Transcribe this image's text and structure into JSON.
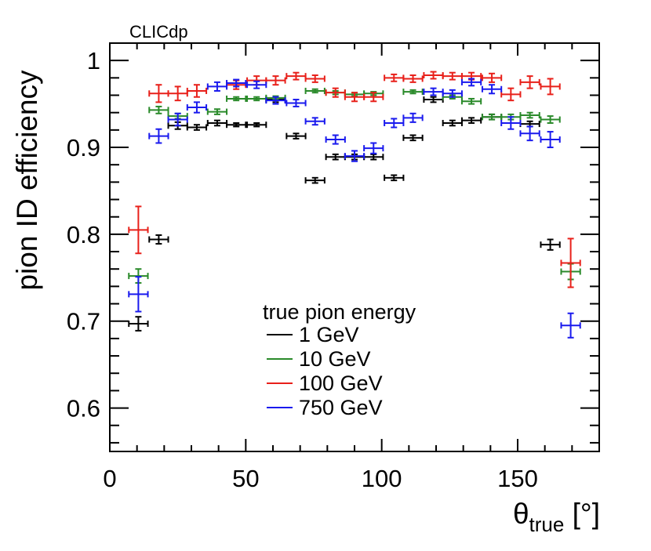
{
  "chart_data": {
    "type": "scatter",
    "label": "CLICdp",
    "xlabel_main": "θ",
    "xlabel_sub": "true",
    "xlabel_unit": " [°]",
    "ylabel": "pion ID efficiency",
    "xlim": [
      0,
      180
    ],
    "ylim": [
      0.55,
      1.02
    ],
    "x_ticks": [
      0,
      50,
      100,
      150
    ],
    "y_ticks": [
      0.6,
      0.7,
      0.8,
      0.9,
      1
    ],
    "y_tick_labels": [
      "0.6",
      "0.7",
      "0.8",
      "0.9",
      "1"
    ],
    "legend_title": "true pion energy",
    "series": [
      {
        "name": "1 GeV",
        "color": "#000000",
        "points": [
          {
            "x": 10.5,
            "y": 0.697,
            "xerr": 3.5,
            "yerr": 0.008
          },
          {
            "x": 18.0,
            "y": 0.794,
            "xerr": 3.5,
            "yerr": 0.005
          },
          {
            "x": 25.0,
            "y": 0.925,
            "xerr": 3.5,
            "yerr": 0.004
          },
          {
            "x": 32.0,
            "y": 0.923,
            "xerr": 3.5,
            "yerr": 0.003
          },
          {
            "x": 39.5,
            "y": 0.928,
            "xerr": 3.5,
            "yerr": 0.003
          },
          {
            "x": 46.5,
            "y": 0.926,
            "xerr": 3.5,
            "yerr": 0.002
          },
          {
            "x": 54.0,
            "y": 0.926,
            "xerr": 3.5,
            "yerr": 0.002
          },
          {
            "x": 61.0,
            "y": 0.955,
            "xerr": 3.5,
            "yerr": 0.003
          },
          {
            "x": 68.5,
            "y": 0.913,
            "xerr": 3.5,
            "yerr": 0.003
          },
          {
            "x": 75.5,
            "y": 0.862,
            "xerr": 3.5,
            "yerr": 0.003
          },
          {
            "x": 83.0,
            "y": 0.889,
            "xerr": 3.5,
            "yerr": 0.003
          },
          {
            "x": 90.0,
            "y": 0.889,
            "xerr": 3.5,
            "yerr": 0.003
          },
          {
            "x": 97.0,
            "y": 0.889,
            "xerr": 3.5,
            "yerr": 0.003
          },
          {
            "x": 104.5,
            "y": 0.865,
            "xerr": 3.5,
            "yerr": 0.003
          },
          {
            "x": 111.5,
            "y": 0.911,
            "xerr": 3.5,
            "yerr": 0.003
          },
          {
            "x": 119.0,
            "y": 0.955,
            "xerr": 3.5,
            "yerr": 0.003
          },
          {
            "x": 126.0,
            "y": 0.928,
            "xerr": 3.5,
            "yerr": 0.003
          },
          {
            "x": 133.0,
            "y": 0.931,
            "xerr": 3.5,
            "yerr": 0.003
          },
          {
            "x": 140.5,
            "y": 0.935,
            "xerr": 3.5,
            "yerr": 0.003
          },
          {
            "x": 154.5,
            "y": 0.927,
            "xerr": 3.5,
            "yerr": 0.003
          },
          {
            "x": 162.0,
            "y": 0.788,
            "xerr": 3.5,
            "yerr": 0.006
          }
        ]
      },
      {
        "name": "10 GeV",
        "color": "#2a8a2a",
        "points": [
          {
            "x": 10.5,
            "y": 0.752,
            "xerr": 3.5,
            "yerr": 0.008
          },
          {
            "x": 18.0,
            "y": 0.943,
            "xerr": 3.5,
            "yerr": 0.004
          },
          {
            "x": 25.0,
            "y": 0.936,
            "xerr": 3.5,
            "yerr": 0.003
          },
          {
            "x": 39.5,
            "y": 0.941,
            "xerr": 3.5,
            "yerr": 0.003
          },
          {
            "x": 46.5,
            "y": 0.956,
            "xerr": 3.5,
            "yerr": 0.002
          },
          {
            "x": 54.0,
            "y": 0.956,
            "xerr": 3.5,
            "yerr": 0.002
          },
          {
            "x": 61.0,
            "y": 0.957,
            "xerr": 3.5,
            "yerr": 0.002
          },
          {
            "x": 75.5,
            "y": 0.965,
            "xerr": 3.5,
            "yerr": 0.002
          },
          {
            "x": 83.0,
            "y": 0.963,
            "xerr": 3.5,
            "yerr": 0.002
          },
          {
            "x": 90.0,
            "y": 0.961,
            "xerr": 3.5,
            "yerr": 0.002
          },
          {
            "x": 97.0,
            "y": 0.962,
            "xerr": 3.5,
            "yerr": 0.002
          },
          {
            "x": 111.5,
            "y": 0.964,
            "xerr": 3.5,
            "yerr": 0.002
          },
          {
            "x": 126.0,
            "y": 0.958,
            "xerr": 3.5,
            "yerr": 0.002
          },
          {
            "x": 133.0,
            "y": 0.953,
            "xerr": 3.5,
            "yerr": 0.003
          },
          {
            "x": 140.5,
            "y": 0.935,
            "xerr": 3.5,
            "yerr": 0.003
          },
          {
            "x": 147.5,
            "y": 0.935,
            "xerr": 3.5,
            "yerr": 0.003
          },
          {
            "x": 154.5,
            "y": 0.937,
            "xerr": 3.5,
            "yerr": 0.003
          },
          {
            "x": 162.0,
            "y": 0.932,
            "xerr": 3.5,
            "yerr": 0.004
          },
          {
            "x": 169.5,
            "y": 0.757,
            "xerr": 3.5,
            "yerr": 0.009
          }
        ]
      },
      {
        "name": "100 GeV",
        "color": "#e8201a",
        "points": [
          {
            "x": 10.5,
            "y": 0.805,
            "xerr": 3.5,
            "yerr": 0.027
          },
          {
            "x": 18.0,
            "y": 0.962,
            "xerr": 3.5,
            "yerr": 0.01
          },
          {
            "x": 25.0,
            "y": 0.962,
            "xerr": 3.5,
            "yerr": 0.008
          },
          {
            "x": 32.0,
            "y": 0.965,
            "xerr": 3.5,
            "yerr": 0.007
          },
          {
            "x": 46.5,
            "y": 0.972,
            "xerr": 3.5,
            "yerr": 0.005
          },
          {
            "x": 54.0,
            "y": 0.977,
            "xerr": 3.5,
            "yerr": 0.005
          },
          {
            "x": 61.0,
            "y": 0.977,
            "xerr": 3.5,
            "yerr": 0.005
          },
          {
            "x": 68.5,
            "y": 0.982,
            "xerr": 3.5,
            "yerr": 0.004
          },
          {
            "x": 75.5,
            "y": 0.979,
            "xerr": 3.5,
            "yerr": 0.004
          },
          {
            "x": 83.0,
            "y": 0.963,
            "xerr": 3.5,
            "yerr": 0.005
          },
          {
            "x": 90.0,
            "y": 0.958,
            "xerr": 3.5,
            "yerr": 0.005
          },
          {
            "x": 97.0,
            "y": 0.958,
            "xerr": 3.5,
            "yerr": 0.005
          },
          {
            "x": 104.5,
            "y": 0.98,
            "xerr": 3.5,
            "yerr": 0.004
          },
          {
            "x": 111.5,
            "y": 0.979,
            "xerr": 3.5,
            "yerr": 0.004
          },
          {
            "x": 119.0,
            "y": 0.983,
            "xerr": 3.5,
            "yerr": 0.004
          },
          {
            "x": 126.0,
            "y": 0.982,
            "xerr": 3.5,
            "yerr": 0.004
          },
          {
            "x": 133.0,
            "y": 0.982,
            "xerr": 3.5,
            "yerr": 0.004
          },
          {
            "x": 140.5,
            "y": 0.98,
            "xerr": 3.5,
            "yerr": 0.005
          },
          {
            "x": 147.5,
            "y": 0.961,
            "xerr": 3.5,
            "yerr": 0.007
          },
          {
            "x": 154.5,
            "y": 0.975,
            "xerr": 3.5,
            "yerr": 0.007
          },
          {
            "x": 162.0,
            "y": 0.97,
            "xerr": 3.5,
            "yerr": 0.009
          },
          {
            "x": 169.5,
            "y": 0.767,
            "xerr": 3.5,
            "yerr": 0.028
          }
        ]
      },
      {
        "name": "750 GeV",
        "color": "#1a1aee",
        "points": [
          {
            "x": 10.5,
            "y": 0.731,
            "xerr": 3.5,
            "yerr": 0.02
          },
          {
            "x": 18.0,
            "y": 0.913,
            "xerr": 3.5,
            "yerr": 0.008
          },
          {
            "x": 25.0,
            "y": 0.932,
            "xerr": 3.5,
            "yerr": 0.007
          },
          {
            "x": 32.0,
            "y": 0.946,
            "xerr": 3.5,
            "yerr": 0.006
          },
          {
            "x": 39.5,
            "y": 0.97,
            "xerr": 3.5,
            "yerr": 0.005
          },
          {
            "x": 46.5,
            "y": 0.974,
            "xerr": 3.5,
            "yerr": 0.004
          },
          {
            "x": 54.0,
            "y": 0.972,
            "xerr": 3.5,
            "yerr": 0.004
          },
          {
            "x": 61.0,
            "y": 0.954,
            "xerr": 3.5,
            "yerr": 0.004
          },
          {
            "x": 68.5,
            "y": 0.951,
            "xerr": 3.5,
            "yerr": 0.004
          },
          {
            "x": 75.5,
            "y": 0.93,
            "xerr": 3.5,
            "yerr": 0.004
          },
          {
            "x": 83.0,
            "y": 0.909,
            "xerr": 3.5,
            "yerr": 0.005
          },
          {
            "x": 90.0,
            "y": 0.89,
            "xerr": 3.5,
            "yerr": 0.006
          },
          {
            "x": 97.0,
            "y": 0.899,
            "xerr": 3.5,
            "yerr": 0.006
          },
          {
            "x": 104.5,
            "y": 0.928,
            "xerr": 3.5,
            "yerr": 0.005
          },
          {
            "x": 111.5,
            "y": 0.934,
            "xerr": 3.5,
            "yerr": 0.005
          },
          {
            "x": 119.0,
            "y": 0.964,
            "xerr": 3.5,
            "yerr": 0.004
          },
          {
            "x": 126.0,
            "y": 0.962,
            "xerr": 3.5,
            "yerr": 0.004
          },
          {
            "x": 133.0,
            "y": 0.975,
            "xerr": 3.5,
            "yerr": 0.004
          },
          {
            "x": 140.5,
            "y": 0.967,
            "xerr": 3.5,
            "yerr": 0.005
          },
          {
            "x": 147.5,
            "y": 0.928,
            "xerr": 3.5,
            "yerr": 0.007
          },
          {
            "x": 154.5,
            "y": 0.916,
            "xerr": 3.5,
            "yerr": 0.008
          },
          {
            "x": 162.0,
            "y": 0.909,
            "xerr": 3.5,
            "yerr": 0.009
          },
          {
            "x": 169.5,
            "y": 0.695,
            "xerr": 3.5,
            "yerr": 0.014
          }
        ]
      }
    ]
  }
}
